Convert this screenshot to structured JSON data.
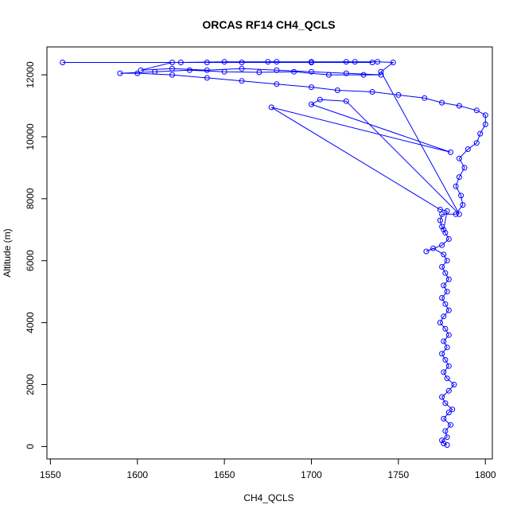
{
  "chart_data": {
    "type": "scatter",
    "title": "ORCAS RF14 CH4_QCLS",
    "xlabel": "CH4_QCLS",
    "ylabel": "Altitude (m)",
    "xlim": [
      1548,
      1804
    ],
    "ylim": [
      -400,
      12900
    ],
    "x_ticks": [
      1550,
      1600,
      1650,
      1700,
      1750,
      1800
    ],
    "y_ticks": [
      0,
      2000,
      4000,
      6000,
      8000,
      10000,
      12000
    ],
    "grid": false,
    "legend": "none",
    "series": [
      {
        "color": "#0000ff",
        "marker": "open-circle",
        "connected": true,
        "points": [
          [
            1778,
            50
          ],
          [
            1776,
            100
          ],
          [
            1775,
            200
          ],
          [
            1778,
            300
          ],
          [
            1777,
            500
          ],
          [
            1780,
            700
          ],
          [
            1776,
            900
          ],
          [
            1779,
            1100
          ],
          [
            1781,
            1200
          ],
          [
            1777,
            1400
          ],
          [
            1775,
            1600
          ],
          [
            1779,
            1800
          ],
          [
            1782,
            2000
          ],
          [
            1778,
            2200
          ],
          [
            1776,
            2400
          ],
          [
            1779,
            2600
          ],
          [
            1777,
            2800
          ],
          [
            1775,
            3000
          ],
          [
            1778,
            3200
          ],
          [
            1776,
            3400
          ],
          [
            1779,
            3600
          ],
          [
            1777,
            3800
          ],
          [
            1774,
            4000
          ],
          [
            1776,
            4200
          ],
          [
            1779,
            4400
          ],
          [
            1777,
            4600
          ],
          [
            1775,
            4800
          ],
          [
            1778,
            5000
          ],
          [
            1776,
            5200
          ],
          [
            1779,
            5400
          ],
          [
            1777,
            5600
          ],
          [
            1775,
            5800
          ],
          [
            1778,
            6000
          ],
          [
            1776,
            6200
          ],
          [
            1770,
            6400
          ],
          [
            1766,
            6300
          ],
          [
            1775,
            6500
          ],
          [
            1779,
            6700
          ],
          [
            1777,
            6900
          ],
          [
            1775,
            7100
          ],
          [
            1774,
            7300
          ],
          [
            1775,
            7500
          ],
          [
            1783,
            7500
          ],
          [
            1787,
            7800
          ],
          [
            1786,
            8100
          ],
          [
            1783,
            8400
          ],
          [
            1785,
            8700
          ],
          [
            1788,
            9000
          ],
          [
            1785,
            9300
          ],
          [
            1790,
            9600
          ],
          [
            1795,
            9800
          ],
          [
            1797,
            10100
          ],
          [
            1800,
            10400
          ],
          [
            1800,
            10700
          ],
          [
            1795,
            10850
          ],
          [
            1785,
            11000
          ],
          [
            1775,
            11100
          ],
          [
            1765,
            11250
          ],
          [
            1750,
            11350
          ],
          [
            1735,
            11450
          ],
          [
            1715,
            11500
          ],
          [
            1700,
            11600
          ],
          [
            1680,
            11700
          ],
          [
            1660,
            11800
          ],
          [
            1640,
            11900
          ],
          [
            1620,
            12000
          ],
          [
            1600,
            12050
          ],
          [
            1590,
            12050
          ],
          [
            1610,
            12100
          ],
          [
            1630,
            12150
          ],
          [
            1650,
            12100
          ],
          [
            1670,
            12080
          ],
          [
            1690,
            12100
          ],
          [
            1710,
            12000
          ],
          [
            1730,
            12000
          ],
          [
            1740,
            12000
          ],
          [
            1720,
            12050
          ],
          [
            1700,
            12100
          ],
          [
            1680,
            12150
          ],
          [
            1660,
            12200
          ],
          [
            1640,
            12150
          ],
          [
            1620,
            12200
          ],
          [
            1602,
            12150
          ],
          [
            1620,
            12400
          ],
          [
            1640,
            12400
          ],
          [
            1660,
            12400
          ],
          [
            1680,
            12420
          ],
          [
            1700,
            12420
          ],
          [
            1720,
            12420
          ],
          [
            1735,
            12400
          ],
          [
            1557,
            12400
          ],
          [
            1625,
            12400
          ],
          [
            1650,
            12420
          ],
          [
            1675,
            12420
          ],
          [
            1700,
            12400
          ],
          [
            1725,
            12420
          ],
          [
            1738,
            12420
          ],
          [
            1747,
            12400
          ],
          [
            1740,
            12100
          ],
          [
            1785,
            7500
          ],
          [
            1720,
            11150
          ],
          [
            1705,
            11200
          ],
          [
            1700,
            11050
          ],
          [
            1780,
            9500
          ],
          [
            1677,
            10950
          ],
          [
            1774,
            7650
          ],
          [
            1778,
            7600
          ],
          [
            1776,
            7000
          ]
        ]
      }
    ]
  }
}
